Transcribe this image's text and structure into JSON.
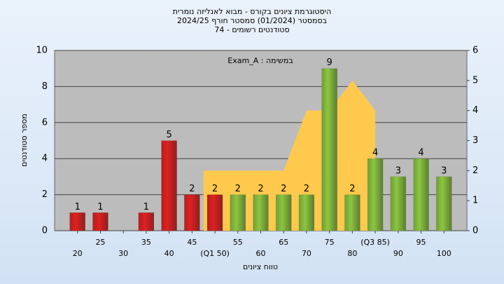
{
  "chart_data": {
    "type": "bar",
    "title": "היסטוגרמת ציונים בקורס - מבוא לאנליזה נומרית",
    "subtitle": "בסמסטר  (01/2024)  סמסטר חורף 2024/25",
    "subtitle2": "סטודנטים רשומים - 74",
    "annotation": "Exam_A : במשימה",
    "y_label": "מספר סטודנטים",
    "x_label": "טווח ציונים",
    "categories": [
      "20",
      "25",
      "30",
      "35",
      "40",
      "45",
      "(Q1 50)",
      "55",
      "60",
      "65",
      "70",
      "75",
      "80",
      "(Q3 85)",
      "90",
      "95",
      "100"
    ],
    "values": [
      1,
      1,
      null,
      1,
      5,
      2,
      2,
      2,
      2,
      2,
      2,
      9,
      2,
      4,
      3,
      4,
      3
    ],
    "colors": [
      "#e02020",
      "#e02020",
      "#e02020",
      "#e02020",
      "#e02020",
      "#e02020",
      "#e02020",
      "#8cc63f",
      "#8cc63f",
      "#8cc63f",
      "#8cc63f",
      "#8cc63f",
      "#8cc63f",
      "#8cc63f",
      "#8cc63f",
      "#8cc63f",
      "#8cc63f"
    ],
    "series": [
      {
        "type": "area",
        "axis": "y2",
        "color": "#ffc94d",
        "values": [
          null,
          null,
          null,
          null,
          null,
          null,
          2,
          2,
          2,
          2,
          4,
          4,
          5,
          4,
          null,
          null,
          null
        ]
      }
    ],
    "ylim": [
      0,
      10
    ],
    "yticks": [
      0,
      2,
      4,
      6,
      8,
      10
    ],
    "y2lim": [
      0,
      6
    ],
    "y2ticks": [
      0,
      1,
      2,
      3,
      4,
      5,
      6
    ],
    "grid": true
  }
}
